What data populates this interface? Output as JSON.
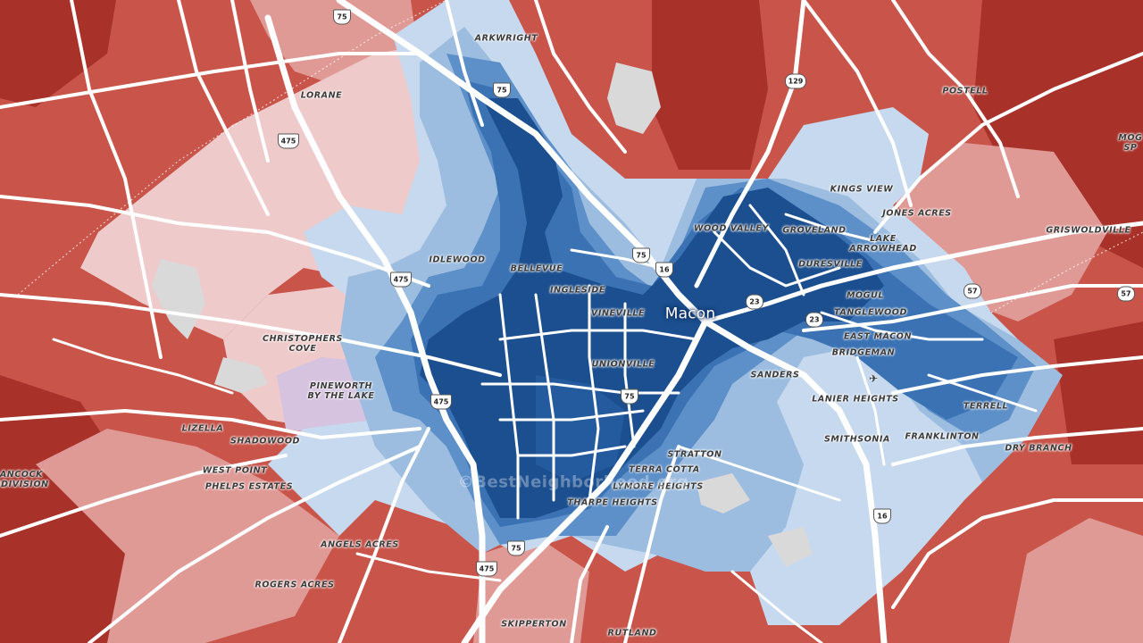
{
  "map": {
    "city": "Macon",
    "watermark": "©BestNeighborhood.org",
    "colors": {
      "dark_red": "#a8322a",
      "red": "#c8544a",
      "light_red": "#e09a96",
      "pale_red": "#efcaca",
      "lavender": "#d6c3e0",
      "pale_blue": "#c6d9ee",
      "light_blue": "#9cbde0",
      "mid_blue": "#5d8fc8",
      "blue": "#3a72b4",
      "dark_blue": "#1c4f8f",
      "road": "#ffffff",
      "water": "#d9d9d9"
    },
    "labels": {
      "arkwright": "ARKWRIGHT",
      "lorane": "LORANE",
      "postell": "POSTELL",
      "mogul_springs": "MOG\nSP",
      "kings_view": "KINGS VIEW",
      "jones_acres": "JONES ACRES",
      "griswoldville": "GRISWOLDVILLE",
      "wood_valley": "WOOD VALLEY",
      "groveland": "GROVELAND",
      "lake_arrowhead": "LAKE\nARROWHEAD",
      "duresville": "DURESVILLE",
      "idlewood": "IDLEWOOD",
      "bellevue": "BELLEVUE",
      "ingleside": "INGLESIDE",
      "vineville": "VINEVILLE",
      "mogul": "MOGUL",
      "tanglewood": "TANGLEWOOD",
      "east_macon": "EAST MACON",
      "bridgeman": "BRIDGEMAN",
      "christophers_cove": "CHRISTOPHERS\nCOVE",
      "pineworth": "PINEWORTH\nBY THE LAKE",
      "unionville": "UNIONVILLE",
      "sanders": "SANDERS",
      "lanier_heights": "LANIER HEIGHTS",
      "terrell": "TERRELL",
      "smithsonia": "SMITHSONIA",
      "franklinton": "FRANKLINTON",
      "dry_branch": "DRY BRANCH",
      "lizella": "LIZELLA",
      "shadowood": "SHADOWOOD",
      "west_point": "WEST POINT",
      "phelps_estates": "PHELPS ESTATES",
      "hancock_subdivision": "ANCOCK\nBDIVISION",
      "stratton": "STRATTON",
      "terra_cotta": "TERRA COTTA",
      "lymore_heights": "LYMORE HEIGHTS",
      "tharpe_heights": "THARPE HEIGHTS",
      "angels_acres": "ANGELS ACRES",
      "rogers_acres": "ROGERS ACRES",
      "skipperton": "SKIPPERTON",
      "rutland": "RUTLAND"
    },
    "shields": {
      "i75_north": "75",
      "i75_arkwright": "75",
      "us129": "129",
      "i475_north": "475",
      "i475_mid": "475",
      "i475_south": "475",
      "i475_bottom": "475",
      "i75_downtown": "75",
      "i16_downtown": "16",
      "i75_center": "75",
      "us23_a": "23",
      "us23_b": "23",
      "sr57_a": "57",
      "sr57_b": "57",
      "i75_south": "75",
      "i16_south": "16"
    },
    "airport_icon": "airplane-icon"
  }
}
